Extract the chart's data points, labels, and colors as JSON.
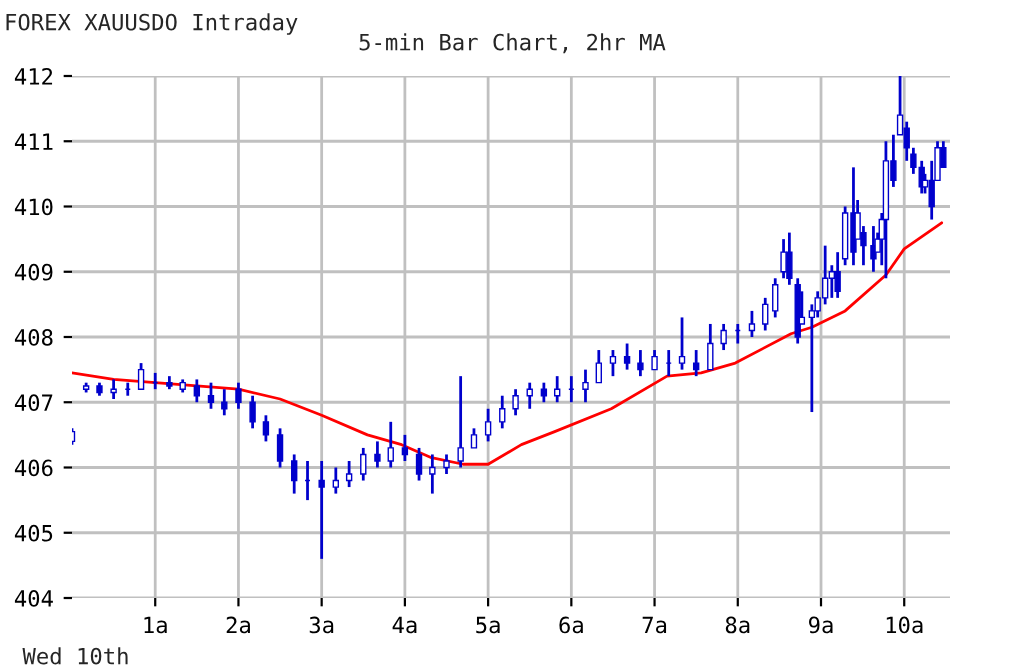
{
  "chart_data": {
    "type": "candlestick",
    "title": "FOREX XAUUSDO Intraday",
    "subtitle": "5-min Bar Chart, 2hr MA",
    "annotations": [
      "Wed 10th"
    ],
    "color": "#0000cc",
    "x": [
      0.0,
      0.17,
      0.33,
      0.5,
      0.67,
      0.83,
      1.0,
      1.17,
      1.33,
      1.5,
      1.67,
      1.83,
      2.0,
      2.17,
      2.33,
      2.5,
      2.67,
      2.83,
      3.0,
      3.17,
      3.33,
      3.5,
      3.67,
      3.83,
      4.0,
      4.17,
      4.33,
      4.5,
      4.67,
      4.83,
      5.0,
      5.17,
      5.33,
      5.5,
      5.67,
      5.83,
      6.0,
      6.17,
      6.33,
      6.5,
      6.67,
      6.83,
      7.0,
      7.17,
      7.33,
      7.5,
      7.67,
      7.83,
      8.0,
      8.17,
      8.33,
      8.45,
      8.55,
      8.62,
      8.72,
      8.77,
      8.89,
      8.96,
      9.05,
      9.13,
      9.2,
      9.29,
      9.39,
      9.44,
      9.51,
      9.63,
      9.68,
      9.73,
      9.78,
      9.87,
      9.95,
      10.03,
      10.11,
      10.21,
      10.25,
      10.33,
      10.4,
      10.47
    ],
    "ohlc": [
      [
        406.4,
        406.6,
        406.35,
        406.55
      ],
      [
        407.2,
        407.3,
        407.15,
        407.25
      ],
      [
        407.25,
        407.3,
        407.1,
        407.15
      ],
      [
        407.15,
        407.35,
        407.05,
        407.2
      ],
      [
        407.2,
        407.3,
        407.1,
        407.2
      ],
      [
        407.2,
        407.6,
        407.2,
        407.5
      ],
      [
        407.3,
        407.45,
        407.2,
        407.3
      ],
      [
        407.3,
        407.4,
        407.2,
        407.25
      ],
      [
        407.2,
        407.35,
        407.15,
        407.3
      ],
      [
        407.25,
        407.35,
        407.0,
        407.1
      ],
      [
        407.1,
        407.3,
        406.9,
        407.0
      ],
      [
        407.0,
        407.2,
        406.8,
        406.9
      ],
      [
        407.2,
        407.3,
        406.9,
        407.0
      ],
      [
        407.0,
        407.1,
        406.6,
        406.7
      ],
      [
        406.7,
        406.8,
        406.4,
        406.5
      ],
      [
        406.5,
        406.6,
        406.0,
        406.1
      ],
      [
        406.1,
        406.2,
        405.6,
        405.8
      ],
      [
        405.8,
        406.1,
        405.5,
        405.8
      ],
      [
        405.8,
        406.1,
        404.6,
        405.7
      ],
      [
        405.7,
        406.0,
        405.6,
        405.8
      ],
      [
        405.8,
        406.1,
        405.7,
        405.9
      ],
      [
        405.9,
        406.3,
        405.8,
        406.2
      ],
      [
        406.2,
        406.4,
        406.0,
        406.1
      ],
      [
        406.1,
        406.7,
        406.0,
        406.3
      ],
      [
        406.3,
        406.5,
        406.1,
        406.2
      ],
      [
        406.2,
        406.3,
        405.8,
        405.9
      ],
      [
        405.9,
        406.2,
        405.6,
        406.0
      ],
      [
        406.0,
        406.2,
        405.9,
        406.1
      ],
      [
        406.1,
        407.4,
        406.0,
        406.3
      ],
      [
        406.3,
        406.6,
        406.3,
        406.5
      ],
      [
        406.5,
        406.9,
        406.4,
        406.7
      ],
      [
        406.7,
        407.1,
        406.6,
        406.9
      ],
      [
        406.9,
        407.2,
        406.8,
        407.1
      ],
      [
        407.1,
        407.3,
        406.9,
        407.2
      ],
      [
        407.2,
        407.3,
        407.0,
        407.1
      ],
      [
        407.1,
        407.4,
        407.0,
        407.2
      ],
      [
        407.2,
        407.4,
        407.0,
        407.2
      ],
      [
        407.2,
        407.5,
        407.0,
        407.3
      ],
      [
        407.3,
        407.8,
        407.3,
        407.6
      ],
      [
        407.6,
        407.8,
        407.4,
        407.7
      ],
      [
        407.7,
        407.9,
        407.5,
        407.6
      ],
      [
        407.6,
        407.8,
        407.4,
        407.5
      ],
      [
        407.5,
        407.8,
        407.5,
        407.7
      ],
      [
        407.6,
        407.8,
        407.4,
        407.6
      ],
      [
        407.6,
        408.3,
        407.5,
        407.7
      ],
      [
        407.6,
        407.8,
        407.4,
        407.5
      ],
      [
        407.5,
        408.2,
        407.5,
        407.9
      ],
      [
        407.9,
        408.2,
        407.8,
        408.1
      ],
      [
        408.1,
        408.2,
        407.9,
        408.1
      ],
      [
        408.1,
        408.4,
        408.0,
        408.2
      ],
      [
        408.2,
        408.6,
        408.1,
        408.5
      ],
      [
        408.4,
        408.9,
        408.3,
        408.8
      ],
      [
        409.0,
        409.5,
        408.9,
        409.3
      ],
      [
        409.3,
        409.6,
        408.8,
        408.9
      ],
      [
        408.8,
        408.9,
        407.9,
        408.0
      ],
      [
        408.2,
        408.7,
        408.2,
        408.3
      ],
      [
        408.3,
        408.5,
        406.85,
        408.4
      ],
      [
        408.4,
        408.7,
        408.3,
        408.6
      ],
      [
        408.6,
        409.4,
        408.5,
        408.9
      ],
      [
        408.9,
        409.1,
        408.6,
        409.0
      ],
      [
        409.0,
        409.3,
        408.6,
        408.7
      ],
      [
        409.2,
        410.0,
        409.1,
        409.9
      ],
      [
        409.9,
        410.6,
        409.1,
        409.3
      ],
      [
        409.5,
        410.1,
        409.5,
        409.9
      ],
      [
        409.6,
        409.7,
        409.1,
        409.4
      ],
      [
        409.4,
        409.7,
        409.0,
        409.2
      ],
      [
        409.3,
        409.6,
        409.3,
        409.5
      ],
      [
        409.5,
        409.9,
        409.1,
        409.8
      ],
      [
        409.8,
        411.0,
        408.9,
        410.7
      ],
      [
        410.7,
        411.1,
        410.3,
        410.4
      ],
      [
        411.1,
        412.0,
        411.1,
        411.4
      ],
      [
        411.2,
        411.3,
        410.7,
        410.9
      ],
      [
        410.8,
        410.9,
        410.5,
        410.6
      ],
      [
        410.6,
        410.7,
        410.2,
        410.3
      ],
      [
        410.3,
        410.5,
        410.2,
        410.4
      ],
      [
        410.4,
        410.7,
        409.8,
        410.0
      ],
      [
        410.4,
        411.0,
        410.4,
        410.9
      ],
      [
        410.9,
        411.0,
        410.6,
        410.6
      ]
    ],
    "series": [
      {
        "type": "line",
        "color": "#ff0000",
        "x": [
          0.0,
          0.5,
          1.0,
          1.5,
          2.0,
          2.5,
          3.0,
          3.55,
          3.96,
          4.32,
          4.7,
          5.0,
          5.4,
          5.8,
          6.48,
          7.15,
          7.56,
          7.97,
          8.64,
          8.89,
          9.29,
          9.78,
          10.0,
          10.45
        ],
        "values": [
          407.45,
          407.35,
          407.3,
          407.25,
          407.2,
          407.05,
          406.8,
          406.5,
          406.35,
          406.15,
          406.05,
          406.05,
          406.35,
          406.55,
          406.9,
          407.4,
          407.45,
          407.6,
          408.05,
          408.15,
          408.4,
          408.95,
          409.35,
          409.75
        ]
      }
    ],
    "xlim": [
      0,
      10.55
    ],
    "xticks": [
      {
        "value": 1,
        "label": "1a"
      },
      {
        "value": 2,
        "label": "2a"
      },
      {
        "value": 3,
        "label": "3a"
      },
      {
        "value": 4,
        "label": "4a"
      },
      {
        "value": 5,
        "label": "5a"
      },
      {
        "value": 6,
        "label": "6a"
      },
      {
        "value": 7,
        "label": "7a"
      },
      {
        "value": 8,
        "label": "8a"
      },
      {
        "value": 9,
        "label": "9a"
      },
      {
        "value": 10,
        "label": "10a"
      }
    ],
    "ylim": [
      404,
      412
    ],
    "yticks": [
      404,
      405,
      406,
      407,
      408,
      409,
      410,
      411,
      412
    ],
    "grid": true,
    "marker": "none",
    "line_style": "solid"
  }
}
